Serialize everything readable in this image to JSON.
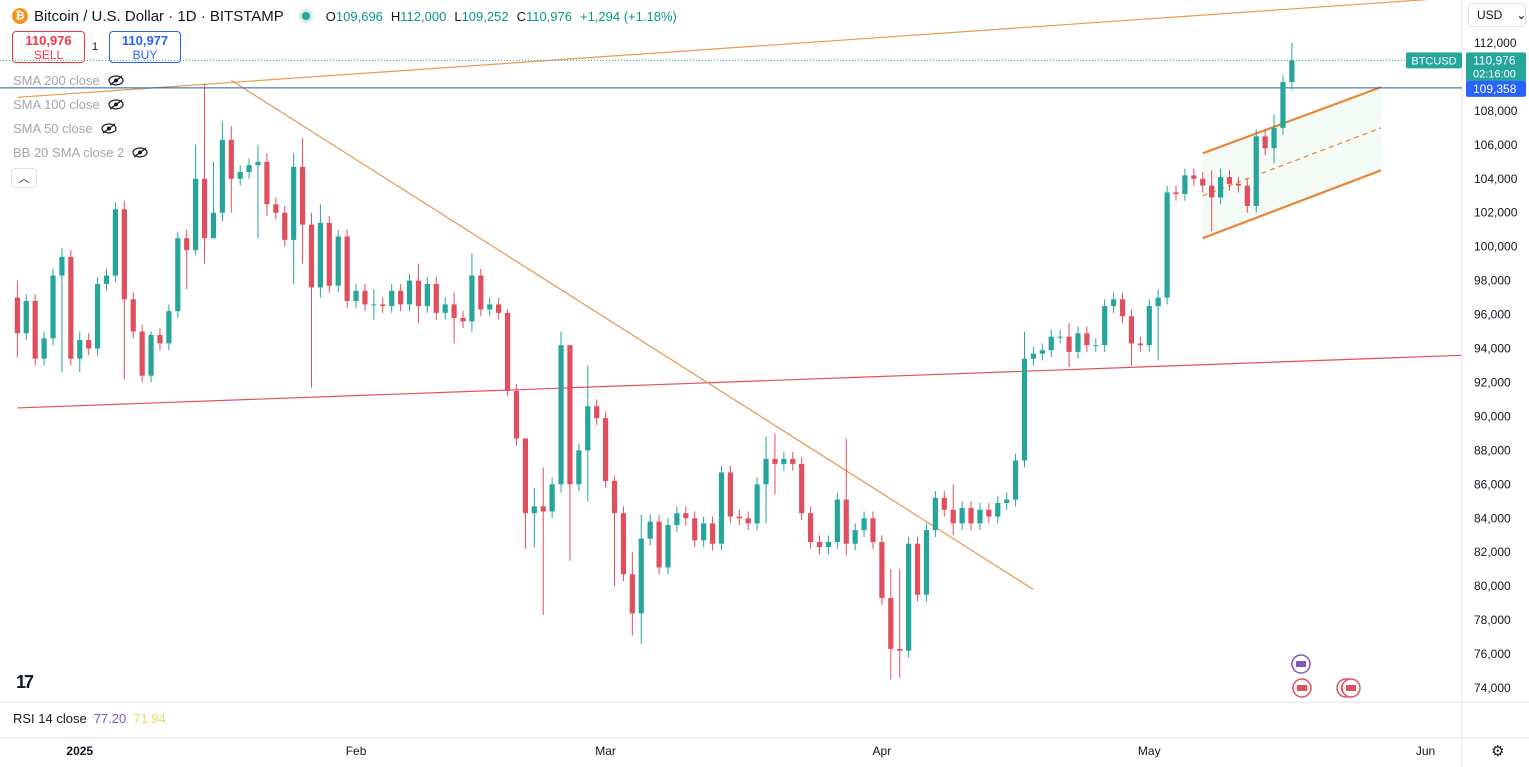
{
  "header": {
    "logo_glyph": "₿",
    "title": "Bitcoin / U.S. Dollar · 1D · BITSTAMP",
    "ohlc": {
      "open_label": "O",
      "open": "109,696",
      "high_label": "H",
      "high": "112,000",
      "low_label": "L",
      "low": "109,252",
      "close_label": "C",
      "close": "110,976",
      "change": "+1,294 (+1.18%)"
    }
  },
  "trade": {
    "sell_price": "110,976",
    "sell_label": "SELL",
    "quantity": "1",
    "buy_price": "110,977",
    "buy_label": "BUY"
  },
  "indicators": [
    "SMA 200 close",
    "SMA 100 close",
    "SMA 50 close",
    "BB 20 SMA close 2"
  ],
  "currency": "USD",
  "rsi": {
    "label": "RSI 14 close",
    "value1": "77.20",
    "value2": "71.94"
  },
  "colors": {
    "up": "#26a69a",
    "down": "#e14f5f",
    "trendline": "#e89a4f",
    "support": "#e14f5f",
    "channel": "#e8873a",
    "price_line": "#1f5fa8"
  },
  "chart_data": {
    "type": "candlestick",
    "symbol": "BTCUSD",
    "ylim": [
      73000,
      114000
    ],
    "yticks": [
      74000,
      76000,
      78000,
      80000,
      82000,
      84000,
      86000,
      88000,
      90000,
      92000,
      94000,
      96000,
      98000,
      100000,
      102000,
      104000,
      106000,
      108000,
      110000,
      112000
    ],
    "ytick_labels": [
      "74,000",
      "76,000",
      "78,000",
      "80,000",
      "82,000",
      "84,000",
      "86,000",
      "88,000",
      "90,000",
      "92,000",
      "94,000",
      "96,000",
      "98,000",
      "100,000",
      "102,000",
      "104,000",
      "106,000",
      "108,000",
      "110,000",
      "112,000"
    ],
    "xticks": [
      {
        "label": "2025",
        "day": 0,
        "bold": true
      },
      {
        "label": "Feb",
        "day": 31
      },
      {
        "label": "Mar",
        "day": 59
      },
      {
        "label": "Apr",
        "day": 90
      },
      {
        "label": "May",
        "day": 120
      },
      {
        "label": "Jun",
        "day": 151
      }
    ],
    "price_badges": {
      "last": {
        "symbol": "BTCUSD",
        "price": "110,976",
        "countdown": "02:16:00",
        "value": 110976
      },
      "level": {
        "price": "109,358",
        "value": 109358
      }
    },
    "candles": [
      [
        -7,
        97000,
        94900
      ],
      [
        -6,
        94900,
        96800
      ],
      [
        -5,
        96800,
        93400
      ],
      [
        -4,
        93400,
        94600
      ],
      [
        -3,
        94600,
        98300
      ],
      [
        -2,
        98300,
        99400
      ],
      [
        -1,
        99400,
        93400
      ],
      [
        0,
        93400,
        94500
      ],
      [
        1,
        94500,
        94000
      ],
      [
        2,
        94000,
        97800
      ],
      [
        3,
        97800,
        98300
      ],
      [
        4,
        98300,
        102200
      ],
      [
        5,
        102200,
        96900
      ],
      [
        6,
        96900,
        95000
      ],
      [
        7,
        95000,
        92400
      ],
      [
        8,
        92400,
        94800
      ],
      [
        9,
        94800,
        94300
      ],
      [
        10,
        94300,
        96200
      ],
      [
        11,
        96200,
        100500
      ],
      [
        12,
        100500,
        99800
      ],
      [
        13,
        99800,
        104000
      ],
      [
        14,
        104000,
        100500
      ],
      [
        15,
        100500,
        102000
      ],
      [
        16,
        102000,
        106300
      ],
      [
        17,
        106300,
        104000
      ],
      [
        18,
        104000,
        104400
      ],
      [
        19,
        104400,
        104800
      ],
      [
        20,
        104800,
        105000
      ],
      [
        21,
        105000,
        102500
      ],
      [
        22,
        102500,
        102000
      ],
      [
        23,
        102000,
        100400
      ],
      [
        24,
        100400,
        104700
      ],
      [
        25,
        104700,
        101300
      ],
      [
        26,
        101300,
        97600
      ],
      [
        27,
        97600,
        101400
      ],
      [
        28,
        101400,
        97700
      ],
      [
        29,
        97700,
        100600
      ],
      [
        30,
        100600,
        96800
      ],
      [
        31,
        96800,
        97400
      ],
      [
        32,
        97400,
        96600
      ],
      [
        33,
        96600,
        96600
      ],
      [
        34,
        96600,
        96500
      ],
      [
        35,
        96500,
        97400
      ],
      [
        36,
        97400,
        96600
      ],
      [
        37,
        96600,
        98000
      ],
      [
        38,
        98000,
        96500
      ],
      [
        39,
        96500,
        97800
      ],
      [
        40,
        97800,
        96100
      ],
      [
        41,
        96100,
        96600
      ],
      [
        42,
        96600,
        95800
      ],
      [
        43,
        95800,
        95600
      ],
      [
        44,
        95600,
        98300
      ],
      [
        45,
        98300,
        96300
      ],
      [
        46,
        96300,
        96600
      ],
      [
        47,
        96600,
        96100
      ],
      [
        48,
        96100,
        91500
      ],
      [
        49,
        91500,
        88700
      ],
      [
        50,
        88700,
        84300
      ],
      [
        51,
        84300,
        84700
      ],
      [
        52,
        84700,
        84400
      ],
      [
        53,
        84400,
        86000
      ],
      [
        54,
        86000,
        94200
      ],
      [
        55,
        94200,
        86000
      ],
      [
        56,
        86000,
        88000
      ],
      [
        57,
        88000,
        90600
      ],
      [
        58,
        90600,
        89900
      ],
      [
        59,
        89900,
        86200
      ],
      [
        60,
        86200,
        84300
      ],
      [
        61,
        84300,
        80700
      ],
      [
        62,
        80700,
        78400
      ],
      [
        63,
        78400,
        82800
      ],
      [
        64,
        82800,
        83800
      ],
      [
        65,
        83800,
        81100
      ],
      [
        66,
        81100,
        83600
      ],
      [
        67,
        83600,
        84300
      ],
      [
        68,
        84300,
        84000
      ],
      [
        69,
        84000,
        82700
      ],
      [
        70,
        82700,
        83700
      ],
      [
        71,
        83700,
        82500
      ],
      [
        72,
        82500,
        86700
      ],
      [
        73,
        86700,
        84100
      ],
      [
        74,
        84100,
        84000
      ],
      [
        75,
        84000,
        83700
      ],
      [
        76,
        83700,
        86000
      ],
      [
        77,
        86000,
        87500
      ],
      [
        78,
        87500,
        87200
      ],
      [
        79,
        87200,
        87500
      ],
      [
        80,
        87500,
        87200
      ],
      [
        81,
        87200,
        84300
      ],
      [
        82,
        84300,
        82600
      ],
      [
        83,
        82600,
        82300
      ],
      [
        84,
        82300,
        82600
      ],
      [
        85,
        82600,
        85100
      ],
      [
        86,
        85100,
        82500
      ],
      [
        87,
        82500,
        83300
      ],
      [
        88,
        83300,
        84000
      ],
      [
        89,
        84000,
        82600
      ],
      [
        90,
        82600,
        79300
      ],
      [
        91,
        79300,
        76300
      ],
      [
        92,
        76300,
        76200
      ],
      [
        93,
        76200,
        82500
      ],
      [
        94,
        82500,
        79500
      ],
      [
        95,
        79500,
        83300
      ],
      [
        96,
        83300,
        85200
      ],
      [
        97,
        85200,
        84500
      ],
      [
        98,
        84500,
        83700
      ],
      [
        99,
        83700,
        84600
      ],
      [
        100,
        84600,
        83700
      ],
      [
        101,
        83700,
        84500
      ],
      [
        102,
        84500,
        84100
      ],
      [
        103,
        84100,
        84900
      ],
      [
        104,
        84900,
        85100
      ],
      [
        105,
        85100,
        87400
      ],
      [
        106,
        87400,
        93400
      ],
      [
        107,
        93400,
        93700
      ],
      [
        108,
        93700,
        93900
      ],
      [
        109,
        93900,
        94700
      ],
      [
        110,
        94700,
        94700
      ],
      [
        111,
        94700,
        93800
      ],
      [
        112,
        93800,
        94900
      ],
      [
        113,
        94900,
        94200
      ],
      [
        114,
        94200,
        94200
      ],
      [
        115,
        94200,
        96500
      ],
      [
        116,
        96500,
        96900
      ],
      [
        117,
        96900,
        95900
      ],
      [
        118,
        95900,
        94300
      ],
      [
        119,
        94300,
        94200
      ],
      [
        120,
        94200,
        96500
      ],
      [
        121,
        96500,
        97000
      ],
      [
        122,
        97000,
        103200
      ],
      [
        123,
        103200,
        103100
      ],
      [
        124,
        103100,
        104200
      ],
      [
        125,
        104200,
        104000
      ],
      [
        126,
        104000,
        103600
      ],
      [
        127,
        103600,
        102900
      ],
      [
        128,
        102900,
        104100
      ],
      [
        129,
        104100,
        103700
      ],
      [
        130,
        103700,
        103600
      ],
      [
        131,
        103600,
        102400
      ],
      [
        132,
        102400,
        106500
      ],
      [
        133,
        106500,
        105800
      ],
      [
        134,
        105800,
        107000
      ],
      [
        135,
        107000,
        109700
      ],
      [
        136,
        109700,
        110976
      ]
    ],
    "wicks": [
      [
        -7,
        98000,
        93500
      ],
      [
        -2,
        99900,
        92600
      ],
      [
        0,
        95000,
        92600
      ],
      [
        5,
        102700,
        92200
      ],
      [
        8,
        95000,
        92000
      ],
      [
        12,
        101000,
        97500
      ],
      [
        13,
        106000,
        99500
      ],
      [
        14,
        109600,
        99000
      ],
      [
        15,
        105000,
        100500
      ],
      [
        16,
        107400,
        101500
      ],
      [
        17,
        107100,
        102000
      ],
      [
        20,
        106000,
        100500
      ],
      [
        21,
        105500,
        101800
      ],
      [
        24,
        105500,
        97800
      ],
      [
        25,
        106400,
        99000
      ],
      [
        26,
        102000,
        91700
      ],
      [
        27,
        102500,
        97000
      ],
      [
        33,
        97500,
        95700
      ],
      [
        38,
        99000,
        95500
      ],
      [
        42,
        97300,
        94300
      ],
      [
        44,
        99600,
        95000
      ],
      [
        48,
        96300,
        91200
      ],
      [
        50,
        88000,
        82200
      ],
      [
        51,
        85800,
        82300
      ],
      [
        52,
        87000,
        78300
      ],
      [
        54,
        95000,
        85500
      ],
      [
        55,
        92200,
        81500
      ],
      [
        57,
        93000,
        85000
      ],
      [
        60,
        86500,
        80000
      ],
      [
        62,
        82000,
        77100
      ],
      [
        63,
        84200,
        76600
      ],
      [
        77,
        88800,
        83700
      ],
      [
        78,
        89000,
        85400
      ],
      [
        86,
        88700,
        81800
      ],
      [
        91,
        81000,
        74500
      ],
      [
        92,
        81000,
        74600
      ],
      [
        98,
        86000,
        83000
      ],
      [
        106,
        95000,
        87000
      ],
      [
        111,
        95500,
        92900
      ],
      [
        118,
        96300,
        93000
      ],
      [
        121,
        97500,
        93300
      ],
      [
        127,
        104500,
        100900
      ],
      [
        128,
        104600,
        102500
      ],
      [
        134,
        107800,
        104900
      ],
      [
        136,
        112000,
        109252
      ]
    ],
    "overlays": {
      "descending_trendline": {
        "from": [
          17,
          109800
        ],
        "to": [
          107,
          79800
        ]
      },
      "resistance_line": {
        "from": [
          -7,
          108800
        ],
        "to": [
          155,
          114700
        ]
      },
      "support_line": {
        "from": [
          -7,
          90500
        ],
        "to": [
          155,
          93600
        ]
      },
      "channel_upper": {
        "from": [
          126,
          105500
        ],
        "to": [
          146,
          109400
        ]
      },
      "channel_lower": {
        "from": [
          126,
          100500
        ],
        "to": [
          146,
          104500
        ]
      },
      "channel_mid": {
        "from": [
          126,
          103000
        ],
        "to": [
          146,
          107000
        ]
      },
      "level_line": 109358
    }
  }
}
